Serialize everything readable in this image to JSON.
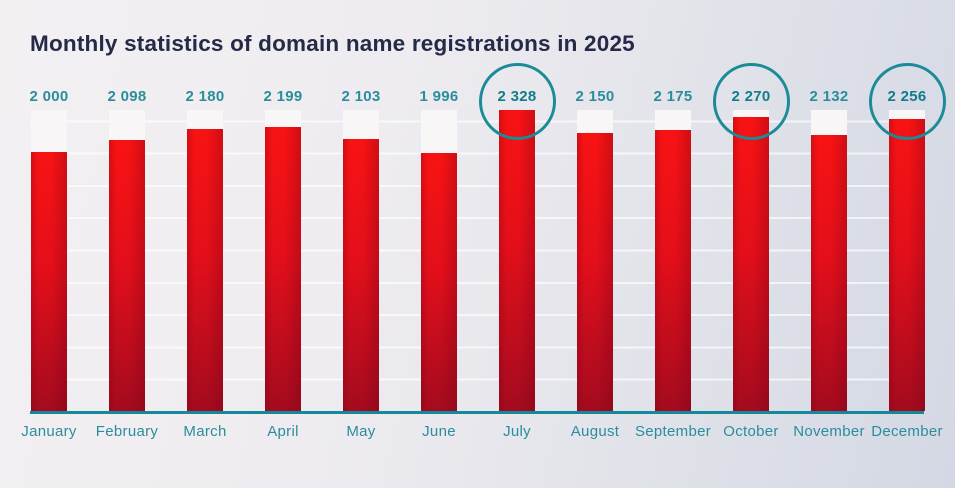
{
  "title": "Monthly statistics of domain name registrations in 2025",
  "chart_data": {
    "type": "bar",
    "title": "Monthly statistics of domain name registrations in 2025",
    "categories": [
      "January",
      "February",
      "March",
      "April",
      "May",
      "June",
      "July",
      "August",
      "September",
      "October",
      "November",
      "December"
    ],
    "values": [
      2000,
      2098,
      2180,
      2199,
      2103,
      1996,
      2328,
      2150,
      2175,
      2270,
      2132,
      2256
    ],
    "value_labels": [
      "2 000",
      "2 098",
      "2 180",
      "2 199",
      "2 103",
      "1 996",
      "2 328",
      "2 150",
      "2 175",
      "2 270",
      "2 132",
      "2 256"
    ],
    "highlighted_months": [
      "July",
      "October",
      "December"
    ],
    "max_value": 2328,
    "ylim": [
      0,
      2328
    ],
    "xlabel": "",
    "ylabel": "",
    "legend": "none",
    "grid": "faint horizontal gridlines, no tick labels",
    "annotations": "teal circles around the July, October and December value labels"
  },
  "colors": {
    "background_start": "#f3f0f2",
    "background_end": "#d3d8e4",
    "title": "#242a47",
    "value_text": "#2b8d9c",
    "value_text_highlight": "#117c8c",
    "month_text": "#2b8d9c",
    "axis_line": "#13899b",
    "circle_stroke": "#1b8b97",
    "bar_top": "#f81313",
    "bar_mid": "#e30f1a",
    "bar_bottom": "#a40b1f",
    "bar_track": "#f8f6f7"
  }
}
